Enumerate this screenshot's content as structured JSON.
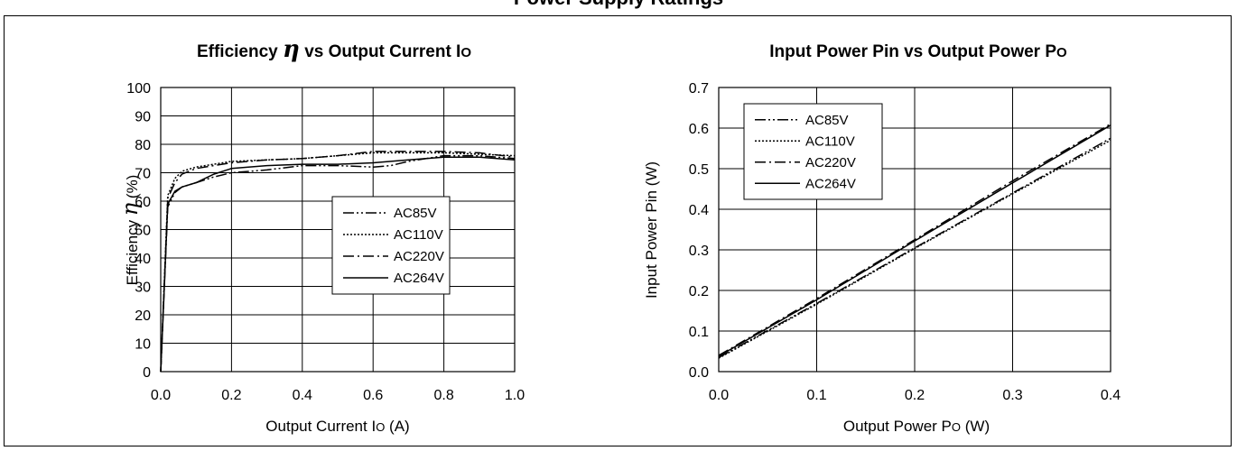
{
  "page": {
    "title": "Power Supply Ratings"
  },
  "chart_data": [
    {
      "type": "line",
      "title": "Efficiency η vs Output Current Io",
      "xlabel": "Output Current Io (A)",
      "ylabel": "Efficiency η (%)",
      "xlim": [
        0.0,
        1.0
      ],
      "ylim": [
        0,
        100
      ],
      "x_ticks": [
        "0.0",
        "0.2",
        "0.4",
        "0.6",
        "0.8",
        "1.0"
      ],
      "y_ticks": [
        "0",
        "10",
        "20",
        "30",
        "40",
        "50",
        "60",
        "70",
        "80",
        "90",
        "100"
      ],
      "grid": true,
      "legend_position": "center-right",
      "series": [
        {
          "name": "AC85V",
          "style": "dash-dot-dot",
          "points": [
            [
              0,
              0
            ],
            [
              0.02,
              58
            ],
            [
              0.04,
              63
            ],
            [
              0.06,
              65
            ],
            [
              0.1,
              66.5
            ],
            [
              0.15,
              68.5
            ],
            [
              0.2,
              70
            ],
            [
              0.3,
              71
            ],
            [
              0.4,
              72.5
            ],
            [
              0.5,
              72.5
            ],
            [
              0.6,
              72
            ],
            [
              0.65,
              72.5
            ],
            [
              0.7,
              74
            ],
            [
              0.8,
              76
            ],
            [
              0.9,
              76
            ],
            [
              1.0,
              75
            ]
          ]
        },
        {
          "name": "AC110V",
          "style": "dotted",
          "points": [
            [
              0,
              0
            ],
            [
              0.02,
              62
            ],
            [
              0.04,
              68
            ],
            [
              0.06,
              70.5
            ],
            [
              0.1,
              72
            ],
            [
              0.15,
              73
            ],
            [
              0.2,
              74
            ],
            [
              0.3,
              74.5
            ],
            [
              0.4,
              75
            ],
            [
              0.5,
              76
            ],
            [
              0.6,
              77
            ],
            [
              0.7,
              77
            ],
            [
              0.8,
              77
            ],
            [
              0.9,
              76.5
            ],
            [
              1.0,
              76
            ]
          ]
        },
        {
          "name": "AC220V",
          "style": "dash-dot",
          "points": [
            [
              0,
              0
            ],
            [
              0.02,
              61
            ],
            [
              0.04,
              66.5
            ],
            [
              0.06,
              69.5
            ],
            [
              0.1,
              71.5
            ],
            [
              0.15,
              72.5
            ],
            [
              0.2,
              73.5
            ],
            [
              0.3,
              74.5
            ],
            [
              0.4,
              75
            ],
            [
              0.5,
              76
            ],
            [
              0.6,
              77.5
            ],
            [
              0.7,
              77.5
            ],
            [
              0.8,
              77.5
            ],
            [
              0.9,
              77
            ],
            [
              1.0,
              75.5
            ]
          ]
        },
        {
          "name": "AC264V",
          "style": "solid",
          "points": [
            [
              0,
              0
            ],
            [
              0.02,
              59
            ],
            [
              0.04,
              63.5
            ],
            [
              0.06,
              65
            ],
            [
              0.1,
              66.5
            ],
            [
              0.15,
              69.5
            ],
            [
              0.2,
              71.5
            ],
            [
              0.3,
              72.5
            ],
            [
              0.4,
              73
            ],
            [
              0.5,
              73
            ],
            [
              0.6,
              73.5
            ],
            [
              0.7,
              74.5
            ],
            [
              0.8,
              75.5
            ],
            [
              0.9,
              75.5
            ],
            [
              1.0,
              74.5
            ]
          ]
        }
      ]
    },
    {
      "type": "line",
      "title": "Input Power Pin vs Output Power Po",
      "xlabel": "Output Power Po (W)",
      "ylabel": "Input Power Pin (W)",
      "xlim": [
        0.0,
        0.4
      ],
      "ylim": [
        0.0,
        0.7
      ],
      "x_ticks": [
        "0.0",
        "0.1",
        "0.2",
        "0.3",
        "0.4"
      ],
      "y_ticks": [
        "0.0",
        "0.1",
        "0.2",
        "0.3",
        "0.4",
        "0.5",
        "0.6",
        "0.7"
      ],
      "grid": true,
      "legend_position": "top-left",
      "series": [
        {
          "name": "AC85V",
          "style": "dash-dot-dot",
          "points": [
            [
              0,
              0.035
            ],
            [
              0.1,
              0.168
            ],
            [
              0.2,
              0.305
            ],
            [
              0.3,
              0.44
            ],
            [
              0.4,
              0.575
            ]
          ]
        },
        {
          "name": "AC110V",
          "style": "dotted",
          "points": [
            [
              0,
              0.033
            ],
            [
              0.1,
              0.166
            ],
            [
              0.2,
              0.303
            ],
            [
              0.3,
              0.438
            ],
            [
              0.4,
              0.57
            ]
          ]
        },
        {
          "name": "AC220V",
          "style": "dash-dot",
          "points": [
            [
              0,
              0.04
            ],
            [
              0.1,
              0.18
            ],
            [
              0.2,
              0.325
            ],
            [
              0.3,
              0.47
            ],
            [
              0.4,
              0.61
            ]
          ]
        },
        {
          "name": "AC264V",
          "style": "solid",
          "points": [
            [
              0,
              0.038
            ],
            [
              0.1,
              0.177
            ],
            [
              0.2,
              0.322
            ],
            [
              0.3,
              0.465
            ],
            [
              0.4,
              0.607
            ]
          ]
        }
      ]
    }
  ]
}
